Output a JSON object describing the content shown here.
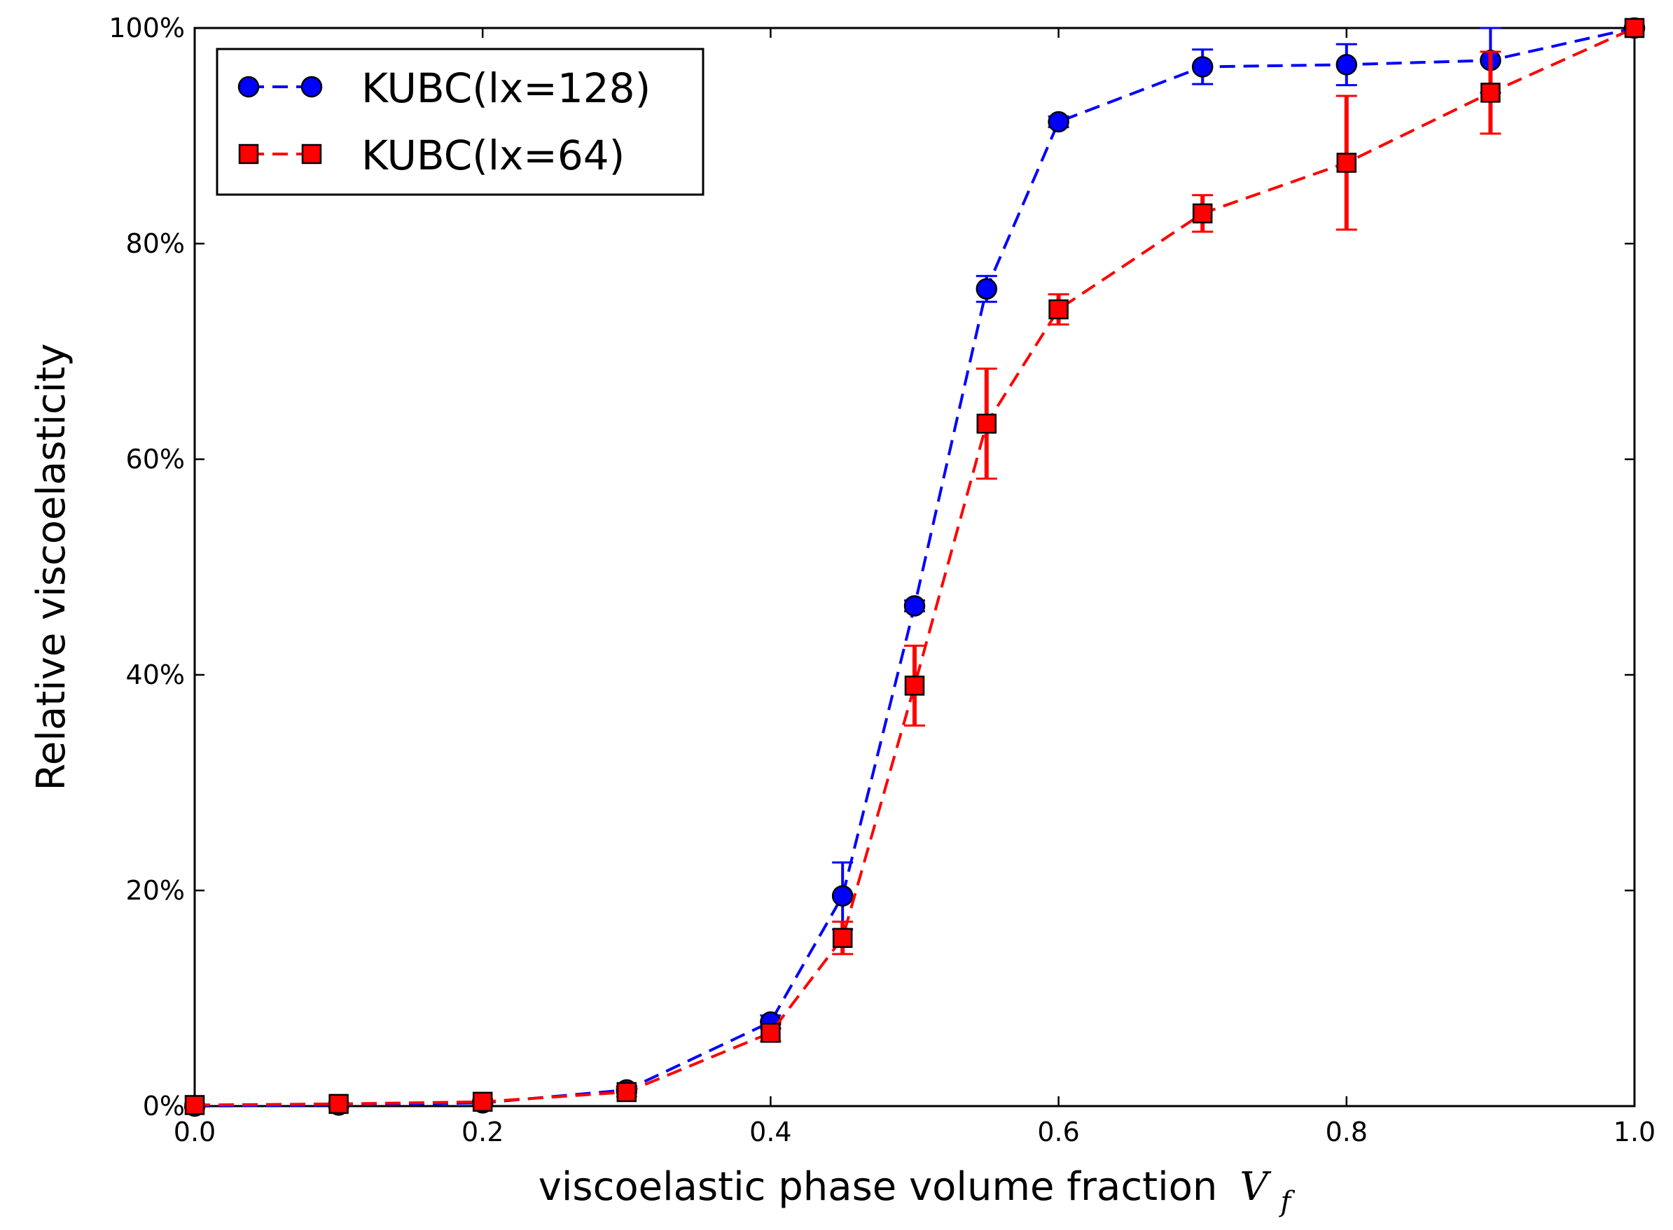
{
  "chart_data": {
    "type": "line",
    "title": "",
    "xlabel": "viscoelastic phase volume fraction",
    "xlabel_symbol": "V",
    "xlabel_subscript": "f",
    "ylabel": "Relative viscoelasticity",
    "xlim": [
      0.0,
      1.0
    ],
    "ylim": [
      0,
      100
    ],
    "x_ticks": [
      "0.0",
      "0.2",
      "0.4",
      "0.6",
      "0.8",
      "1.0"
    ],
    "y_ticks": [
      "0%",
      "20%",
      "40%",
      "60%",
      "80%",
      "100%"
    ],
    "grid": false,
    "legend_position": "top-left",
    "series": [
      {
        "name": "KUBC(lx=128)",
        "color": "#0000ff",
        "marker": "circle",
        "line_style": "dashed",
        "x": [
          0.0,
          0.1,
          0.2,
          0.3,
          0.4,
          0.45,
          0.5,
          0.55,
          0.6,
          0.7,
          0.8,
          0.9,
          1.0
        ],
        "y": [
          0.0,
          0.1,
          0.3,
          1.5,
          7.8,
          19.5,
          46.4,
          75.8,
          91.3,
          96.4,
          96.6,
          97.0,
          100.0
        ],
        "err": [
          0.0,
          0.05,
          0.15,
          0.3,
          0.6,
          3.1,
          0.5,
          1.2,
          0.5,
          1.6,
          1.9,
          3.0,
          0.0
        ]
      },
      {
        "name": "KUBC(lx=64)",
        "color": "#ff0000",
        "marker": "square",
        "line_style": "dashed",
        "x": [
          0.0,
          0.1,
          0.2,
          0.3,
          0.4,
          0.45,
          0.5,
          0.55,
          0.6,
          0.7,
          0.8,
          0.9,
          1.0
        ],
        "y": [
          0.1,
          0.2,
          0.4,
          1.3,
          6.8,
          15.6,
          39.0,
          63.3,
          73.9,
          82.8,
          87.5,
          94.0,
          100.0
        ],
        "err": [
          0.05,
          0.1,
          0.2,
          0.4,
          0.8,
          1.5,
          3.7,
          5.1,
          1.4,
          1.7,
          6.2,
          3.8,
          0.0
        ]
      }
    ]
  }
}
